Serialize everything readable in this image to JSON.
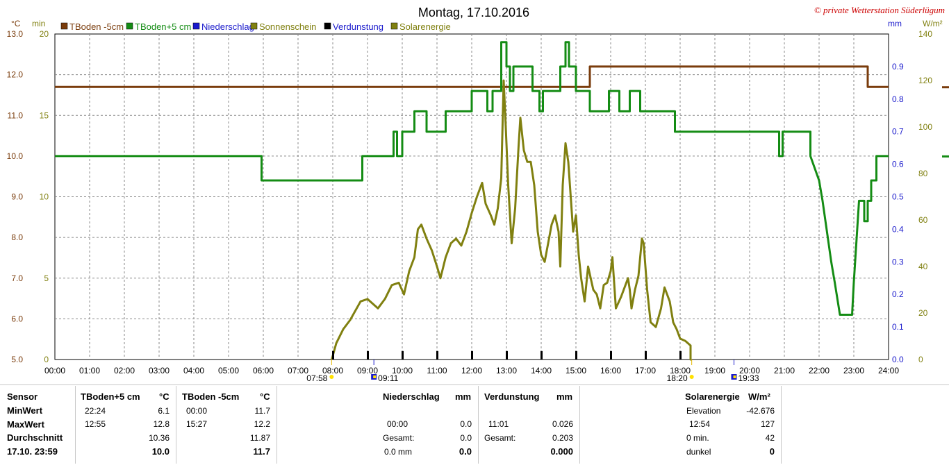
{
  "header": {
    "title": "Montag, 17.10.2016",
    "copyright": "© private Wetterstation Süderlügum",
    "unit_celsius": "°C",
    "unit_min": "min",
    "unit_mm": "mm",
    "unit_wm2": "W/m²"
  },
  "chart_data": {
    "type": "line",
    "title": "Montag, 17.10.2016",
    "x_range": [
      0,
      24
    ],
    "x_ticks": [
      "00:00",
      "01:00",
      "02:00",
      "03:00",
      "04:00",
      "05:00",
      "06:00",
      "07:00",
      "08:00",
      "09:00",
      "10:00",
      "11:00",
      "12:00",
      "13:00",
      "14:00",
      "15:00",
      "16:00",
      "17:00",
      "18:00",
      "19:00",
      "20:00",
      "21:00",
      "22:00",
      "23:00",
      "24:00"
    ],
    "axes": {
      "celsius": {
        "range": [
          5.0,
          13.0
        ],
        "ticks": [
          "5.0",
          "6.0",
          "7.0",
          "8.0",
          "9.0",
          "10.0",
          "11.0",
          "12.0",
          "13.0"
        ]
      },
      "minutes": {
        "range": [
          0,
          20
        ],
        "ticks": [
          "0",
          "5",
          "10",
          "15",
          "20"
        ]
      },
      "mm": {
        "range": [
          0.0,
          1.0
        ],
        "ticks": [
          "0.0",
          "0.1",
          "0.2",
          "0.3",
          "0.4",
          "0.5",
          "0.6",
          "0.7",
          "0.8",
          "0.9"
        ]
      },
      "wm2": {
        "range": [
          0,
          140
        ],
        "ticks": [
          "0",
          "20",
          "40",
          "60",
          "80",
          "100",
          "120",
          "140"
        ]
      }
    },
    "legend": [
      "TBoden -5cm",
      "TBoden+5 cm",
      "Niederschlag",
      "Sonnenschein",
      "Verdunstung",
      "Solarenergie"
    ],
    "legend_colors": [
      "#7a3c0c",
      "#148c14",
      "#1a1acc",
      "#808010",
      "#000000",
      "#808010"
    ],
    "series": [
      {
        "name": "TBoden -5cm",
        "axis": "celsius",
        "color": "#7a3c0c",
        "step": true,
        "points": [
          [
            0,
            11.7
          ],
          [
            15.4,
            11.7
          ],
          [
            15.4,
            12.2
          ],
          [
            23.4,
            12.2
          ],
          [
            23.4,
            11.7
          ],
          [
            24,
            11.7
          ]
        ]
      },
      {
        "name": "TBoden+5 cm",
        "axis": "celsius",
        "color": "#148c14",
        "step": true,
        "points": [
          [
            0,
            10.0
          ],
          [
            5.95,
            10.0
          ],
          [
            5.95,
            9.4
          ],
          [
            8.85,
            9.4
          ],
          [
            8.85,
            10.0
          ],
          [
            9.75,
            10.0
          ],
          [
            9.75,
            10.6
          ],
          [
            9.85,
            10.6
          ],
          [
            9.85,
            10.0
          ],
          [
            10.0,
            10.0
          ],
          [
            10.0,
            10.6
          ],
          [
            10.35,
            10.6
          ],
          [
            10.35,
            11.1
          ],
          [
            10.7,
            11.1
          ],
          [
            10.7,
            10.6
          ],
          [
            11.25,
            10.6
          ],
          [
            11.25,
            11.1
          ],
          [
            12.0,
            11.1
          ],
          [
            12.0,
            11.6
          ],
          [
            12.45,
            11.6
          ],
          [
            12.45,
            11.1
          ],
          [
            12.6,
            11.1
          ],
          [
            12.6,
            11.6
          ],
          [
            12.85,
            11.6
          ],
          [
            12.85,
            12.8
          ],
          [
            13.0,
            12.8
          ],
          [
            13.0,
            12.2
          ],
          [
            13.1,
            12.2
          ],
          [
            13.1,
            11.6
          ],
          [
            13.2,
            11.6
          ],
          [
            13.2,
            12.2
          ],
          [
            13.75,
            12.2
          ],
          [
            13.75,
            11.6
          ],
          [
            13.95,
            11.6
          ],
          [
            13.95,
            11.1
          ],
          [
            14.05,
            11.1
          ],
          [
            14.05,
            11.6
          ],
          [
            14.55,
            11.6
          ],
          [
            14.55,
            12.2
          ],
          [
            14.7,
            12.2
          ],
          [
            14.7,
            12.8
          ],
          [
            14.8,
            12.8
          ],
          [
            14.8,
            12.2
          ],
          [
            15.0,
            12.2
          ],
          [
            15.0,
            11.6
          ],
          [
            15.4,
            11.6
          ],
          [
            15.4,
            11.1
          ],
          [
            15.95,
            11.1
          ],
          [
            15.95,
            11.6
          ],
          [
            16.25,
            11.6
          ],
          [
            16.25,
            11.1
          ],
          [
            16.55,
            11.1
          ],
          [
            16.55,
            11.6
          ],
          [
            16.85,
            11.6
          ],
          [
            16.85,
            11.1
          ],
          [
            17.85,
            11.1
          ],
          [
            17.85,
            10.6
          ],
          [
            20.85,
            10.6
          ],
          [
            20.85,
            10.0
          ],
          [
            20.95,
            10.0
          ],
          [
            20.95,
            10.6
          ],
          [
            21.75,
            10.6
          ],
          [
            21.75,
            10.0
          ],
          [
            22.0,
            9.4
          ],
          [
            22.1,
            8.9
          ],
          [
            22.25,
            8.0
          ],
          [
            22.35,
            7.4
          ],
          [
            22.45,
            6.9
          ],
          [
            22.6,
            6.1
          ],
          [
            22.95,
            6.1
          ],
          [
            23.0,
            6.9
          ],
          [
            23.15,
            8.9
          ],
          [
            23.3,
            8.9
          ],
          [
            23.3,
            8.4
          ],
          [
            23.4,
            8.4
          ],
          [
            23.4,
            8.9
          ],
          [
            23.5,
            8.9
          ],
          [
            23.5,
            9.4
          ],
          [
            23.65,
            9.4
          ],
          [
            23.65,
            10.0
          ],
          [
            24,
            10.0
          ]
        ]
      },
      {
        "name": "Solarenergie",
        "axis": "wm2",
        "color": "#808010",
        "step": false,
        "points": [
          [
            7.97,
            0
          ],
          [
            8.1,
            7
          ],
          [
            8.3,
            13
          ],
          [
            8.5,
            17
          ],
          [
            8.8,
            25
          ],
          [
            9.0,
            26
          ],
          [
            9.3,
            22
          ],
          [
            9.5,
            26
          ],
          [
            9.7,
            32
          ],
          [
            9.9,
            33
          ],
          [
            10.05,
            28
          ],
          [
            10.2,
            38
          ],
          [
            10.35,
            44
          ],
          [
            10.45,
            56
          ],
          [
            10.55,
            58
          ],
          [
            10.7,
            52
          ],
          [
            10.85,
            47
          ],
          [
            11.0,
            40
          ],
          [
            11.1,
            35
          ],
          [
            11.25,
            44
          ],
          [
            11.4,
            50
          ],
          [
            11.55,
            52
          ],
          [
            11.7,
            49
          ],
          [
            11.85,
            55
          ],
          [
            12.0,
            63
          ],
          [
            12.15,
            70
          ],
          [
            12.3,
            76
          ],
          [
            12.4,
            67
          ],
          [
            12.55,
            62
          ],
          [
            12.65,
            58
          ],
          [
            12.75,
            65
          ],
          [
            12.85,
            78
          ],
          [
            12.92,
            120
          ],
          [
            12.98,
            100
          ],
          [
            13.05,
            75
          ],
          [
            13.15,
            50
          ],
          [
            13.25,
            65
          ],
          [
            13.35,
            92
          ],
          [
            13.4,
            104
          ],
          [
            13.5,
            90
          ],
          [
            13.6,
            85
          ],
          [
            13.7,
            85
          ],
          [
            13.8,
            75
          ],
          [
            13.9,
            55
          ],
          [
            14.0,
            45
          ],
          [
            14.1,
            42
          ],
          [
            14.2,
            50
          ],
          [
            14.3,
            58
          ],
          [
            14.4,
            62
          ],
          [
            14.5,
            55
          ],
          [
            14.55,
            40
          ],
          [
            14.62,
            75
          ],
          [
            14.7,
            93
          ],
          [
            14.78,
            85
          ],
          [
            14.85,
            70
          ],
          [
            14.92,
            55
          ],
          [
            15.0,
            62
          ],
          [
            15.08,
            45
          ],
          [
            15.15,
            35
          ],
          [
            15.25,
            25
          ],
          [
            15.35,
            40
          ],
          [
            15.5,
            30
          ],
          [
            15.6,
            28
          ],
          [
            15.7,
            22
          ],
          [
            15.8,
            32
          ],
          [
            15.9,
            33
          ],
          [
            16.0,
            38
          ],
          [
            16.05,
            44
          ],
          [
            16.15,
            22
          ],
          [
            16.3,
            27
          ],
          [
            16.5,
            35
          ],
          [
            16.55,
            30
          ],
          [
            16.6,
            22
          ],
          [
            16.7,
            30
          ],
          [
            16.8,
            36
          ],
          [
            16.9,
            52
          ],
          [
            16.95,
            50
          ],
          [
            17.05,
            30
          ],
          [
            17.15,
            16
          ],
          [
            17.3,
            14
          ],
          [
            17.45,
            22
          ],
          [
            17.55,
            31
          ],
          [
            17.7,
            25
          ],
          [
            17.8,
            16
          ],
          [
            17.9,
            13
          ],
          [
            18.0,
            9
          ],
          [
            18.15,
            8
          ],
          [
            18.3,
            6
          ],
          [
            18.3,
            0
          ],
          [
            18.33,
            0
          ]
        ]
      },
      {
        "name": "Verdunstung",
        "axis": "mm",
        "color": "#000000",
        "type": "ticks",
        "points": [
          [
            8.0,
            0.026
          ],
          [
            9.0,
            0.026
          ],
          [
            10.0,
            0.026
          ],
          [
            11.0,
            0.026
          ],
          [
            12.0,
            0.026
          ],
          [
            13.0,
            0.026
          ],
          [
            14.0,
            0.026
          ],
          [
            15.0,
            0.026
          ],
          [
            16.0,
            0.026
          ],
          [
            17.0,
            0.026
          ],
          [
            18.0,
            0.026
          ]
        ]
      }
    ],
    "markers": {
      "sunrise": "07:58",
      "moonrise": "09:11",
      "sunset": "18:20",
      "moonset": "19:33"
    }
  },
  "table": {
    "col1": {
      "sensor": "Sensor",
      "min": "MinWert",
      "max": "MaxWert",
      "avg": "Durchschnitt",
      "date": "17.10. 23:59"
    },
    "tb5": {
      "title": "TBoden+5 cm",
      "unit": "°C",
      "min_time": "22:24",
      "min_val": "6.1",
      "max_time": "12:55",
      "max_val": "12.8",
      "avg": "10.36",
      "current": "10.0"
    },
    "tbm5": {
      "title": "TBoden -5cm",
      "unit": "°C",
      "min_time": "00:00",
      "min_val": "11.7",
      "max_time": "15:27",
      "max_val": "12.2",
      "avg": "11.87",
      "current": "11.7"
    },
    "rain": {
      "title": "Niederschlag",
      "unit": "mm",
      "max_time": "00:00",
      "max_val": "0.0",
      "sum_label": "Gesamt:",
      "sum_val": "0.0",
      "last": "0.0 mm",
      "current": "0.0"
    },
    "evap": {
      "title": "Verdunstung",
      "unit": "mm",
      "max_time": "11:01",
      "max_val": "0.026",
      "sum_label": "Gesamt:",
      "sum_val": "0.203",
      "current": "0.000"
    },
    "solar": {
      "title": "Solarenergie",
      "unit": "W/m²",
      "elev_label": "Elevation",
      "elev_val": "-42.676",
      "max_time": "12:54",
      "max_val": "127",
      "min_label": "0 min.",
      "min_val": "42",
      "dark_label": "dunkel",
      "dark_val": "0"
    }
  }
}
